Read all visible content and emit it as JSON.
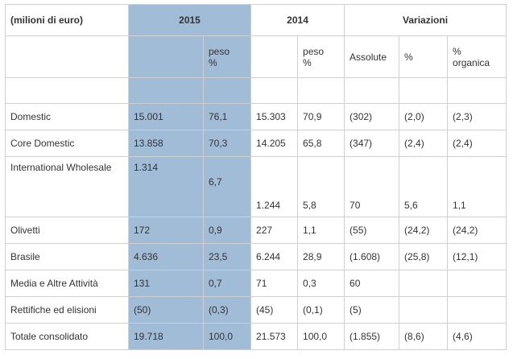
{
  "header": {
    "unit_label": "(milioni di euro)",
    "year_2015": "2015",
    "year_2014": "2014",
    "variations": "Variazioni"
  },
  "subheader": {
    "peso_2015": "peso\n%",
    "peso_2014": "peso\n%",
    "assolute": "Assolute",
    "pct": "%",
    "pct_organica": "%\norganica"
  },
  "rows": [
    {
      "label": "Domestic",
      "v2015": "15.001",
      "p2015": "76,1",
      "v2014": "15.303",
      "p2014": "70,9",
      "abs": "(302)",
      "pct": "(2,0)",
      "org": "(2,3)"
    },
    {
      "label": "Core Domestic",
      "v2015": "13.858",
      "p2015": "70,3",
      "v2014": "14.205",
      "p2014": "65,8",
      "abs": "(347)",
      "pct": "(2,4)",
      "org": "(2,4)"
    },
    {
      "label": "International Wholesale",
      "v2015": "1.314",
      "p2015": "6,7",
      "v2014": "1.244",
      "p2014": "5,8",
      "abs": "70",
      "pct": "5,6",
      "org": "1,1"
    },
    {
      "label": "Olivetti",
      "v2015": "172",
      "p2015": "0,9",
      "v2014": "227",
      "p2014": "1,1",
      "abs": "(55)",
      "pct": "(24,2)",
      "org": "(24,2)"
    },
    {
      "label": "Brasile",
      "v2015": "4.636",
      "p2015": "23,5",
      "v2014": "6.244",
      "p2014": "28,9",
      "abs": "(1.608)",
      "pct": "(25,8)",
      "org": "(12,1)"
    },
    {
      "label": "Media e Altre Attività",
      "v2015": "131",
      "p2015": "0,7",
      "v2014": "71",
      "p2014": "0,3",
      "abs": "60",
      "pct": "",
      "org": ""
    },
    {
      "label": "Rettifiche ed elisioni",
      "v2015": "(50)",
      "p2015": "(0,3)",
      "v2014": "(45)",
      "p2014": "(0,1)",
      "abs": "(5)",
      "pct": "",
      "org": ""
    },
    {
      "label": "Totale consolidato",
      "v2015": "19.718",
      "p2015": "100,0",
      "v2014": "21.573",
      "p2014": "100,0",
      "abs": "(1.855)",
      "pct": "(8,6)",
      "org": "(4,6)"
    }
  ]
}
